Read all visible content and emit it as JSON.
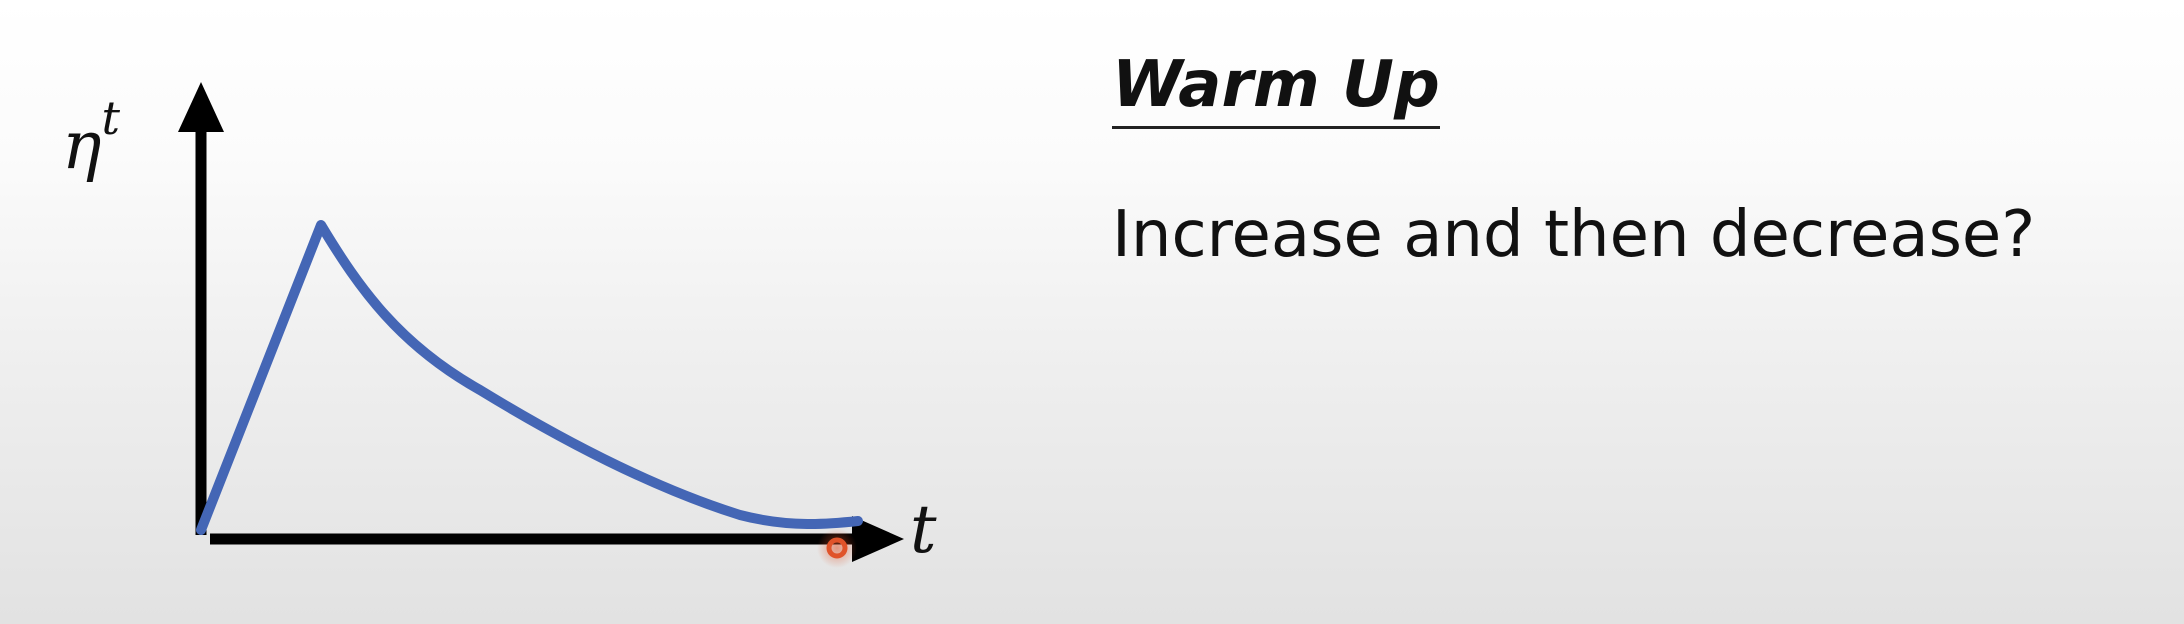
{
  "heading": "Warm Up",
  "subtitle": "Increase and then decrease?",
  "diagram": {
    "y_axis_symbol": "η",
    "y_axis_superscript": "t",
    "x_axis_symbol": "t",
    "curve_color": "#4466b5",
    "axis_color": "#000000",
    "cursor_color": "#e0532a"
  },
  "chart_data": {
    "type": "line",
    "title": "",
    "xlabel": "t",
    "ylabel": "η^t",
    "grid": false,
    "legend": "none",
    "description_points": [
      {
        "x": 0,
        "y": 0
      },
      {
        "x": 0.18,
        "y": 1.0
      },
      {
        "x": 0.35,
        "y": 0.55
      },
      {
        "x": 0.6,
        "y": 0.25
      },
      {
        "x": 0.85,
        "y": 0.03
      },
      {
        "x": 1.0,
        "y": 0.03
      }
    ]
  }
}
